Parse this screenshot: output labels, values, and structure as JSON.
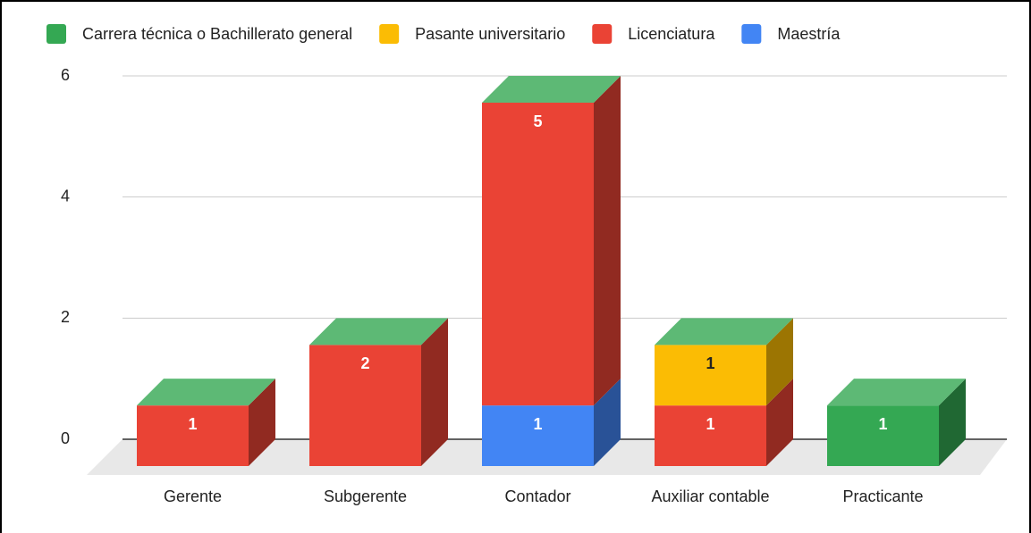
{
  "chart_data": {
    "type": "bar3d_stacked",
    "categories": [
      "Gerente",
      "Subgerente",
      "Contador",
      "Auxiliar contable",
      "Practicante"
    ],
    "series": [
      {
        "name": "Carrera técnica o Bachillerato general",
        "color": "#34a853",
        "values": [
          0,
          0,
          0,
          0,
          1
        ]
      },
      {
        "name": "Pasante universitario",
        "color": "#fbbc04",
        "values": [
          null,
          null,
          null,
          1,
          null
        ]
      },
      {
        "name": "Licenciatura",
        "color": "#ea4335",
        "values": [
          1,
          2,
          5,
          1,
          null
        ]
      },
      {
        "name": "Maestría",
        "color": "#4285f4",
        "values": [
          null,
          null,
          1,
          null,
          null
        ]
      }
    ],
    "ylim": [
      0,
      6
    ],
    "yticks": [
      0,
      2,
      4,
      6
    ],
    "grid": true,
    "legend": "top",
    "data_labels": true
  }
}
